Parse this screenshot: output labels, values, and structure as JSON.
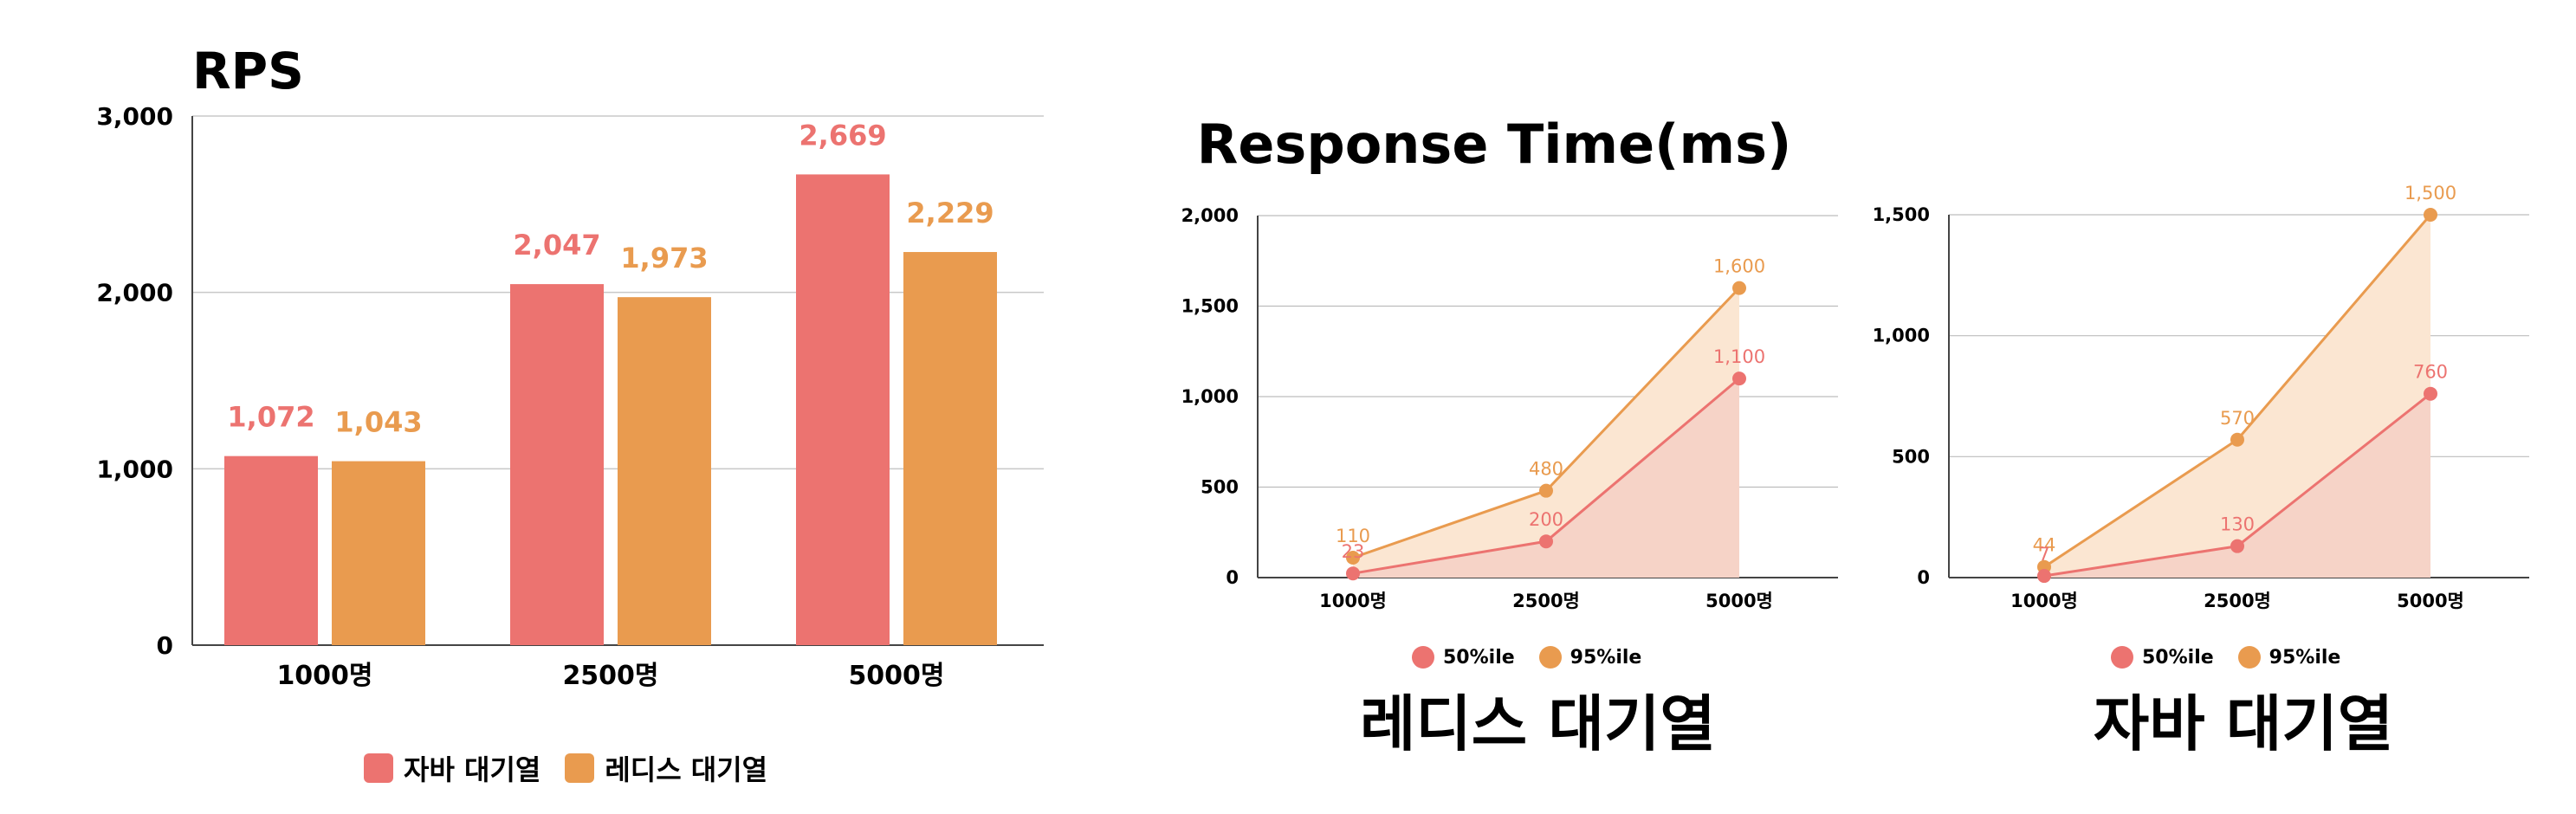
{
  "rps": {
    "title": "RPS",
    "legend": [
      "자바 대기열",
      "레디스 대기열"
    ]
  },
  "response_time": {
    "title": "Response Time(ms)",
    "left_caption": "레디스 대기열",
    "right_caption": "자바 대기열",
    "legend": [
      "50%ile",
      "95%ile"
    ]
  },
  "colors": {
    "java": "#ec7370",
    "redis": "#e99b4f",
    "p50": "#ec7370",
    "p95": "#e99b4f"
  },
  "chart_data": [
    {
      "type": "bar",
      "title": "RPS",
      "categories": [
        "1000명",
        "2500명",
        "5000명"
      ],
      "series": [
        {
          "name": "자바 대기열",
          "values": [
            1072,
            2047,
            2669
          ],
          "labels": [
            "1,072",
            "2,047",
            "2,669"
          ]
        },
        {
          "name": "레디스 대기열",
          "values": [
            1043,
            1973,
            2229
          ],
          "labels": [
            "1,043",
            "1,973",
            "2,229"
          ]
        }
      ],
      "ylim": [
        0,
        3000
      ],
      "yticks": [
        0,
        1000,
        2000,
        3000
      ],
      "ytick_labels": [
        "0",
        "1,000",
        "2,000",
        "3,000"
      ],
      "grid": true,
      "legend_position": "bottom"
    },
    {
      "type": "area",
      "caption": "레디스 대기열",
      "categories": [
        "1000명",
        "2500명",
        "5000명"
      ],
      "series": [
        {
          "name": "50%ile",
          "values": [
            23,
            200,
            1100
          ],
          "labels": [
            "23",
            "200",
            "1,100"
          ]
        },
        {
          "name": "95%ile",
          "values": [
            110,
            480,
            1600
          ],
          "labels": [
            "110",
            "480",
            "1,600"
          ]
        }
      ],
      "ylim": [
        0,
        2000
      ],
      "yticks": [
        0,
        500,
        1000,
        1500,
        2000
      ],
      "ytick_labels": [
        "0",
        "500",
        "1,000",
        "1,500",
        "2,000"
      ],
      "grid": true,
      "legend_position": "bottom"
    },
    {
      "type": "area",
      "caption": "자바 대기열",
      "categories": [
        "1000명",
        "2500명",
        "5000명"
      ],
      "series": [
        {
          "name": "50%ile",
          "values": [
            7,
            130,
            760
          ],
          "labels": [
            "7",
            "130",
            "760"
          ]
        },
        {
          "name": "95%ile",
          "values": [
            44,
            570,
            1500
          ],
          "labels": [
            "44",
            "570",
            "1,500"
          ]
        }
      ],
      "ylim": [
        0,
        1500
      ],
      "yticks": [
        0,
        500,
        1000,
        1500
      ],
      "ytick_labels": [
        "0",
        "500",
        "1,000",
        "1,500"
      ],
      "grid": true,
      "legend_position": "bottom"
    }
  ]
}
